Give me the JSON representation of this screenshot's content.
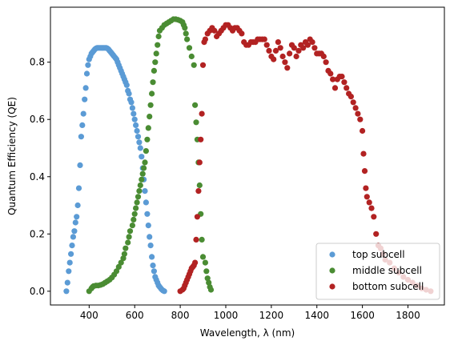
{
  "chart_data": {
    "type": "scatter",
    "xlabel": "Wavelength, λ (nm)",
    "ylabel": "Quantum Efficiency (QE)",
    "xlim": [
      230,
      1960
    ],
    "ylim": [
      -0.048,
      0.992
    ],
    "xticks": [
      400,
      600,
      800,
      1000,
      1200,
      1400,
      1600,
      1800
    ],
    "xtick_labels": [
      "400",
      "600",
      "800",
      "1000",
      "1200",
      "1400",
      "1600",
      "1800"
    ],
    "yticks": [
      0.0,
      0.2,
      0.4,
      0.6,
      0.8
    ],
    "ytick_labels": [
      "0.0",
      "0.2",
      "0.4",
      "0.6",
      "0.8"
    ],
    "grid": false,
    "legend_position": "lower-right",
    "series": [
      {
        "name": "top subcell",
        "color": "#5b9bd5",
        "points": [
          [
            300,
            0.0
          ],
          [
            305,
            0.03
          ],
          [
            310,
            0.07
          ],
          [
            315,
            0.1
          ],
          [
            320,
            0.13
          ],
          [
            325,
            0.16
          ],
          [
            330,
            0.19
          ],
          [
            335,
            0.21
          ],
          [
            340,
            0.24
          ],
          [
            345,
            0.26
          ],
          [
            350,
            0.3
          ],
          [
            355,
            0.36
          ],
          [
            360,
            0.44
          ],
          [
            365,
            0.54
          ],
          [
            370,
            0.58
          ],
          [
            375,
            0.62
          ],
          [
            380,
            0.67
          ],
          [
            385,
            0.71
          ],
          [
            390,
            0.76
          ],
          [
            395,
            0.79
          ],
          [
            400,
            0.81
          ],
          [
            405,
            0.82
          ],
          [
            410,
            0.83
          ],
          [
            415,
            0.835
          ],
          [
            420,
            0.84
          ],
          [
            425,
            0.845
          ],
          [
            430,
            0.848
          ],
          [
            435,
            0.85
          ],
          [
            440,
            0.85
          ],
          [
            445,
            0.85
          ],
          [
            450,
            0.85
          ],
          [
            455,
            0.85
          ],
          [
            460,
            0.85
          ],
          [
            465,
            0.85
          ],
          [
            470,
            0.85
          ],
          [
            475,
            0.85
          ],
          [
            480,
            0.848
          ],
          [
            485,
            0.845
          ],
          [
            490,
            0.84
          ],
          [
            495,
            0.835
          ],
          [
            500,
            0.83
          ],
          [
            505,
            0.825
          ],
          [
            510,
            0.82
          ],
          [
            515,
            0.815
          ],
          [
            520,
            0.81
          ],
          [
            525,
            0.8
          ],
          [
            530,
            0.79
          ],
          [
            535,
            0.78
          ],
          [
            540,
            0.77
          ],
          [
            545,
            0.76
          ],
          [
            550,
            0.75
          ],
          [
            555,
            0.74
          ],
          [
            560,
            0.73
          ],
          [
            565,
            0.72
          ],
          [
            570,
            0.7
          ],
          [
            575,
            0.69
          ],
          [
            580,
            0.67
          ],
          [
            585,
            0.66
          ],
          [
            590,
            0.64
          ],
          [
            595,
            0.62
          ],
          [
            600,
            0.6
          ],
          [
            605,
            0.58
          ],
          [
            610,
            0.56
          ],
          [
            615,
            0.54
          ],
          [
            620,
            0.52
          ],
          [
            625,
            0.5
          ],
          [
            630,
            0.47
          ],
          [
            635,
            0.43
          ],
          [
            640,
            0.39
          ],
          [
            645,
            0.35
          ],
          [
            650,
            0.31
          ],
          [
            655,
            0.27
          ],
          [
            660,
            0.23
          ],
          [
            665,
            0.19
          ],
          [
            670,
            0.16
          ],
          [
            675,
            0.12
          ],
          [
            680,
            0.09
          ],
          [
            685,
            0.07
          ],
          [
            690,
            0.05
          ],
          [
            695,
            0.04
          ],
          [
            700,
            0.03
          ],
          [
            705,
            0.02
          ],
          [
            710,
            0.015
          ],
          [
            715,
            0.01
          ],
          [
            720,
            0.005
          ],
          [
            725,
            0.002
          ],
          [
            730,
            0.0
          ]
        ]
      },
      {
        "name": "middle subcell",
        "color": "#4a8c33",
        "points": [
          [
            400,
            0.0
          ],
          [
            410,
            0.01
          ],
          [
            415,
            0.015
          ],
          [
            420,
            0.018
          ],
          [
            430,
            0.02
          ],
          [
            440,
            0.02
          ],
          [
            450,
            0.022
          ],
          [
            460,
            0.025
          ],
          [
            470,
            0.03
          ],
          [
            480,
            0.035
          ],
          [
            490,
            0.04
          ],
          [
            500,
            0.048
          ],
          [
            510,
            0.058
          ],
          [
            520,
            0.07
          ],
          [
            530,
            0.085
          ],
          [
            540,
            0.1
          ],
          [
            550,
            0.115
          ],
          [
            555,
            0.13
          ],
          [
            560,
            0.15
          ],
          [
            570,
            0.17
          ],
          [
            575,
            0.19
          ],
          [
            580,
            0.21
          ],
          [
            590,
            0.23
          ],
          [
            595,
            0.25
          ],
          [
            600,
            0.27
          ],
          [
            605,
            0.29
          ],
          [
            610,
            0.31
          ],
          [
            615,
            0.33
          ],
          [
            620,
            0.35
          ],
          [
            625,
            0.37
          ],
          [
            630,
            0.39
          ],
          [
            635,
            0.41
          ],
          [
            640,
            0.43
          ],
          [
            645,
            0.45
          ],
          [
            650,
            0.49
          ],
          [
            655,
            0.53
          ],
          [
            660,
            0.57
          ],
          [
            665,
            0.61
          ],
          [
            670,
            0.65
          ],
          [
            675,
            0.69
          ],
          [
            680,
            0.73
          ],
          [
            685,
            0.77
          ],
          [
            690,
            0.8
          ],
          [
            695,
            0.83
          ],
          [
            700,
            0.86
          ],
          [
            705,
            0.89
          ],
          [
            710,
            0.91
          ],
          [
            720,
            0.92
          ],
          [
            730,
            0.93
          ],
          [
            740,
            0.935
          ],
          [
            750,
            0.94
          ],
          [
            760,
            0.945
          ],
          [
            770,
            0.95
          ],
          [
            780,
            0.95
          ],
          [
            790,
            0.948
          ],
          [
            800,
            0.945
          ],
          [
            810,
            0.94
          ],
          [
            815,
            0.93
          ],
          [
            820,
            0.92
          ],
          [
            825,
            0.9
          ],
          [
            830,
            0.88
          ],
          [
            840,
            0.85
          ],
          [
            850,
            0.82
          ],
          [
            860,
            0.79
          ],
          [
            865,
            0.65
          ],
          [
            870,
            0.59
          ],
          [
            875,
            0.53
          ],
          [
            880,
            0.45
          ],
          [
            885,
            0.37
          ],
          [
            890,
            0.27
          ],
          [
            895,
            0.18
          ],
          [
            900,
            0.12
          ],
          [
            910,
            0.1
          ],
          [
            915,
            0.07
          ],
          [
            920,
            0.045
          ],
          [
            925,
            0.03
          ],
          [
            930,
            0.015
          ],
          [
            935,
            0.005
          ]
        ]
      },
      {
        "name": "bottom subcell",
        "color": "#b22222",
        "points": [
          [
            800,
            0.0
          ],
          [
            810,
            0.005
          ],
          [
            815,
            0.01
          ],
          [
            820,
            0.02
          ],
          [
            825,
            0.03
          ],
          [
            830,
            0.04
          ],
          [
            835,
            0.05
          ],
          [
            840,
            0.06
          ],
          [
            845,
            0.07
          ],
          [
            850,
            0.08
          ],
          [
            855,
            0.085
          ],
          [
            860,
            0.09
          ],
          [
            865,
            0.1
          ],
          [
            870,
            0.18
          ],
          [
            875,
            0.26
          ],
          [
            880,
            0.35
          ],
          [
            885,
            0.45
          ],
          [
            890,
            0.53
          ],
          [
            895,
            0.62
          ],
          [
            900,
            0.79
          ],
          [
            905,
            0.87
          ],
          [
            910,
            0.88
          ],
          [
            920,
            0.9
          ],
          [
            930,
            0.91
          ],
          [
            940,
            0.92
          ],
          [
            950,
            0.91
          ],
          [
            960,
            0.89
          ],
          [
            970,
            0.9
          ],
          [
            980,
            0.91
          ],
          [
            990,
            0.92
          ],
          [
            1000,
            0.93
          ],
          [
            1010,
            0.93
          ],
          [
            1020,
            0.92
          ],
          [
            1030,
            0.91
          ],
          [
            1040,
            0.92
          ],
          [
            1050,
            0.92
          ],
          [
            1060,
            0.91
          ],
          [
            1070,
            0.9
          ],
          [
            1080,
            0.87
          ],
          [
            1090,
            0.86
          ],
          [
            1100,
            0.86
          ],
          [
            1110,
            0.87
          ],
          [
            1120,
            0.87
          ],
          [
            1130,
            0.87
          ],
          [
            1140,
            0.88
          ],
          [
            1150,
            0.88
          ],
          [
            1160,
            0.88
          ],
          [
            1170,
            0.88
          ],
          [
            1180,
            0.86
          ],
          [
            1190,
            0.84
          ],
          [
            1200,
            0.82
          ],
          [
            1210,
            0.81
          ],
          [
            1220,
            0.84
          ],
          [
            1230,
            0.87
          ],
          [
            1240,
            0.85
          ],
          [
            1250,
            0.82
          ],
          [
            1260,
            0.8
          ],
          [
            1270,
            0.78
          ],
          [
            1280,
            0.83
          ],
          [
            1290,
            0.86
          ],
          [
            1300,
            0.85
          ],
          [
            1310,
            0.82
          ],
          [
            1320,
            0.84
          ],
          [
            1330,
            0.86
          ],
          [
            1340,
            0.85
          ],
          [
            1350,
            0.87
          ],
          [
            1360,
            0.86
          ],
          [
            1370,
            0.88
          ],
          [
            1380,
            0.87
          ],
          [
            1390,
            0.85
          ],
          [
            1400,
            0.83
          ],
          [
            1410,
            0.83
          ],
          [
            1420,
            0.83
          ],
          [
            1430,
            0.82
          ],
          [
            1440,
            0.8
          ],
          [
            1450,
            0.77
          ],
          [
            1460,
            0.76
          ],
          [
            1470,
            0.74
          ],
          [
            1480,
            0.71
          ],
          [
            1490,
            0.74
          ],
          [
            1500,
            0.75
          ],
          [
            1510,
            0.75
          ],
          [
            1520,
            0.73
          ],
          [
            1530,
            0.71
          ],
          [
            1540,
            0.69
          ],
          [
            1550,
            0.68
          ],
          [
            1560,
            0.66
          ],
          [
            1570,
            0.64
          ],
          [
            1580,
            0.62
          ],
          [
            1590,
            0.6
          ],
          [
            1600,
            0.56
          ],
          [
            1605,
            0.48
          ],
          [
            1610,
            0.42
          ],
          [
            1615,
            0.36
          ],
          [
            1620,
            0.33
          ],
          [
            1630,
            0.31
          ],
          [
            1640,
            0.29
          ],
          [
            1650,
            0.26
          ],
          [
            1660,
            0.2
          ],
          [
            1670,
            0.16
          ],
          [
            1680,
            0.15
          ],
          [
            1690,
            0.13
          ],
          [
            1700,
            0.11
          ],
          [
            1720,
            0.1
          ],
          [
            1740,
            0.08
          ],
          [
            1760,
            0.065
          ],
          [
            1780,
            0.05
          ],
          [
            1800,
            0.04
          ],
          [
            1820,
            0.03
          ],
          [
            1840,
            0.02
          ],
          [
            1860,
            0.01
          ],
          [
            1880,
            0.005
          ],
          [
            1900,
            0.0
          ]
        ]
      }
    ]
  }
}
